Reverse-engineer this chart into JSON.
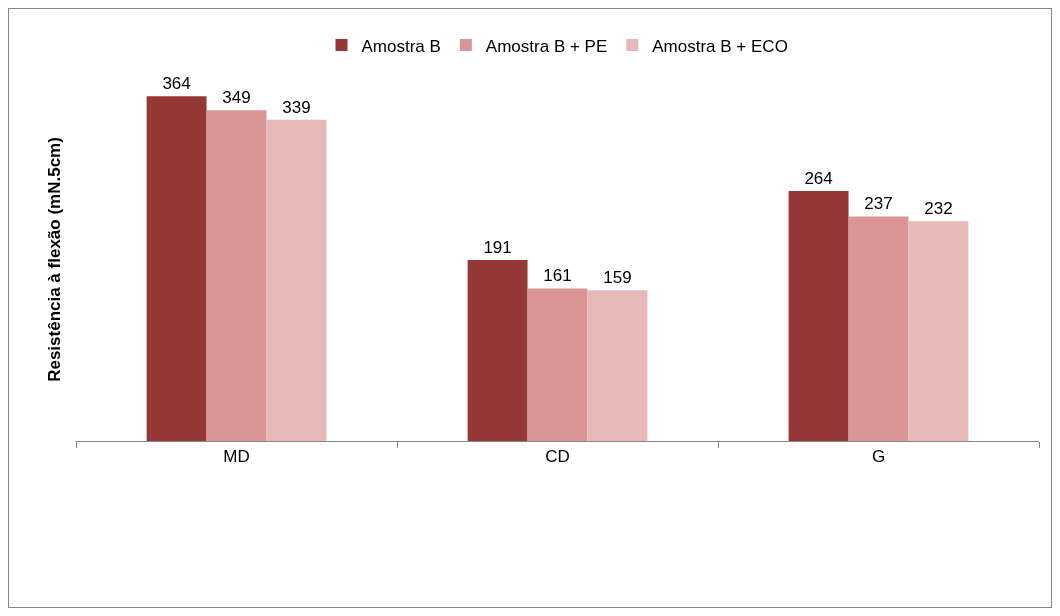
{
  "chart_data": {
    "type": "bar",
    "ylabel": "Resistência à flexão (mN.5cm)",
    "categories": [
      "MD",
      "CD",
      "G"
    ],
    "series": [
      {
        "name": "Amostra B",
        "color": "#953735",
        "values": [
          364,
          191,
          264
        ]
      },
      {
        "name": "Amostra B + PE",
        "color": "#d99694",
        "values": [
          349,
          161,
          237
        ]
      },
      {
        "name": "Amostra B + ECO",
        "color": "#e6b9b8",
        "values": [
          339,
          159,
          232
        ]
      }
    ],
    "data_labels": true,
    "legend": "top",
    "grid": false,
    "tick_labels": "x"
  }
}
